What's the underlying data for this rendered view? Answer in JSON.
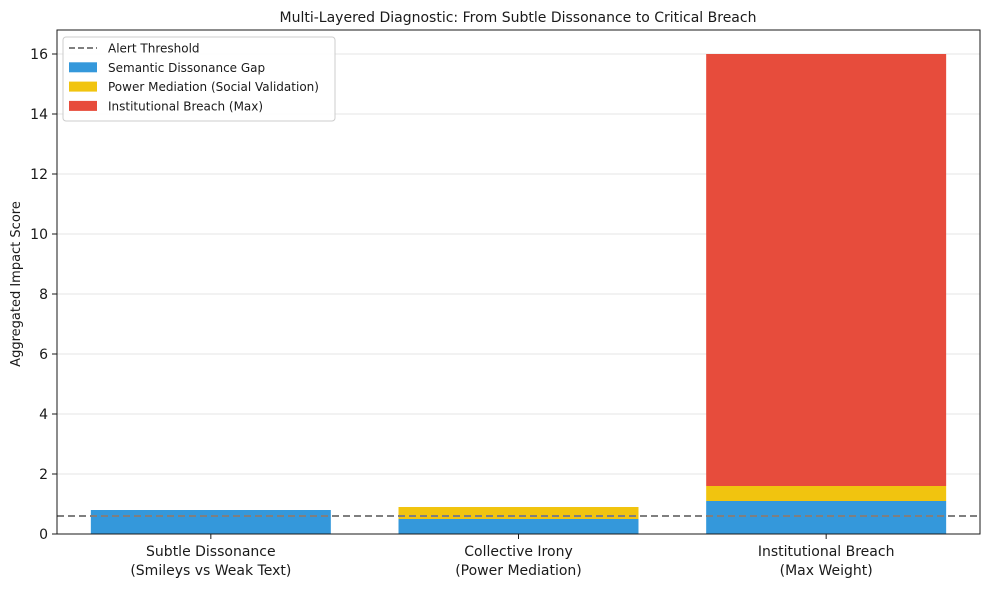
{
  "chart_data": {
    "type": "bar",
    "stacked": true,
    "title": "Multi-Layered Diagnostic: From Subtle Dissonance to Critical Breach",
    "xlabel": "",
    "ylabel": "Aggregated Impact Score",
    "ylim": [
      0,
      16.8
    ],
    "yticks": [
      "0",
      "2",
      "4",
      "6",
      "8",
      "10",
      "12",
      "14",
      "16"
    ],
    "grid": "horizontal",
    "legend_position": "top-left",
    "categories": [
      [
        "Subtle Dissonance",
        "(Smileys vs Weak Text)"
      ],
      [
        "Collective Irony",
        "(Power Mediation)"
      ],
      [
        "Institutional Breach",
        "(Max Weight)"
      ]
    ],
    "series": [
      {
        "name": "Semantic Dissonance Gap",
        "color": "#3498db",
        "values": [
          0.8,
          0.5,
          1.1
        ]
      },
      {
        "name": "Power Mediation (Social Validation)",
        "color": "#f1c40f",
        "values": [
          0,
          0.4,
          0.5
        ]
      },
      {
        "name": "Institutional Breach (Max)",
        "color": "#e74c3c",
        "values": [
          0,
          0,
          14.4
        ]
      }
    ],
    "threshold": {
      "name": "Alert Threshold",
      "value": 0.6,
      "color": "#7f7f7f"
    }
  }
}
